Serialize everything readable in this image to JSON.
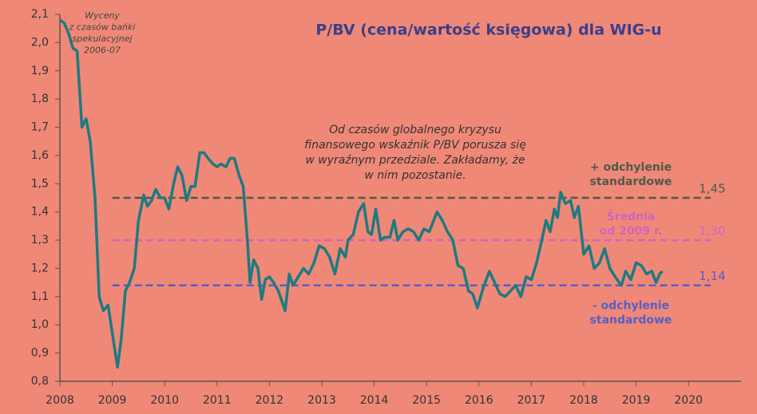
{
  "chart_data": {
    "type": "line",
    "title": "P/BV (cena/wartość księgowa) dla WIG-u",
    "series": [
      {
        "name": "P/BV WIG",
        "color": "#1d7a80",
        "x": [
          2008.0,
          2008.08,
          2008.17,
          2008.25,
          2008.33,
          2008.42,
          2008.5,
          2008.58,
          2008.67,
          2008.75,
          2008.83,
          2008.92,
          2009.0,
          2009.1,
          2009.17,
          2009.25,
          2009.33,
          2009.42,
          2009.5,
          2009.6,
          2009.67,
          2009.75,
          2009.83,
          2009.92,
          2010.0,
          2010.08,
          2010.17,
          2010.25,
          2010.33,
          2010.42,
          2010.5,
          2010.58,
          2010.67,
          2010.75,
          2010.83,
          2010.92,
          2011.0,
          2011.08,
          2011.17,
          2011.25,
          2011.33,
          2011.42,
          2011.5,
          2011.58,
          2011.63,
          2011.7,
          2011.78,
          2011.85,
          2011.92,
          2012.0,
          2012.08,
          2012.17,
          2012.3,
          2012.38,
          2012.45,
          2012.55,
          2012.65,
          2012.75,
          2012.85,
          2012.95,
          2013.05,
          2013.15,
          2013.25,
          2013.35,
          2013.45,
          2013.5,
          2013.6,
          2013.7,
          2013.8,
          2013.88,
          2013.95,
          2014.03,
          2014.12,
          2014.2,
          2014.3,
          2014.38,
          2014.45,
          2014.55,
          2014.65,
          2014.75,
          2014.85,
          2014.95,
          2015.05,
          2015.2,
          2015.3,
          2015.4,
          2015.5,
          2015.6,
          2015.7,
          2015.8,
          2015.88,
          2015.97,
          2016.08,
          2016.2,
          2016.3,
          2016.4,
          2016.5,
          2016.6,
          2016.7,
          2016.8,
          2016.9,
          2017.0,
          2017.1,
          2017.2,
          2017.28,
          2017.36,
          2017.44,
          2017.5,
          2017.56,
          2017.65,
          2017.75,
          2017.82,
          2017.9,
          2018.0,
          2018.1,
          2018.2,
          2018.3,
          2018.4,
          2018.5,
          2018.6,
          2018.72,
          2018.8,
          2018.9,
          2019.0,
          2019.1,
          2019.2,
          2019.3,
          2019.38,
          2019.45,
          2019.5
        ],
        "values": [
          2.08,
          2.07,
          2.03,
          1.98,
          1.97,
          1.7,
          1.73,
          1.65,
          1.45,
          1.1,
          1.05,
          1.07,
          0.97,
          0.85,
          0.95,
          1.12,
          1.15,
          1.2,
          1.37,
          1.46,
          1.42,
          1.44,
          1.48,
          1.45,
          1.45,
          1.41,
          1.5,
          1.56,
          1.53,
          1.44,
          1.49,
          1.49,
          1.61,
          1.61,
          1.59,
          1.57,
          1.56,
          1.57,
          1.56,
          1.59,
          1.59,
          1.53,
          1.49,
          1.3,
          1.15,
          1.23,
          1.2,
          1.09,
          1.16,
          1.17,
          1.15,
          1.12,
          1.05,
          1.18,
          1.14,
          1.17,
          1.2,
          1.18,
          1.22,
          1.28,
          1.27,
          1.24,
          1.18,
          1.27,
          1.24,
          1.3,
          1.32,
          1.4,
          1.43,
          1.33,
          1.32,
          1.41,
          1.3,
          1.31,
          1.31,
          1.37,
          1.3,
          1.33,
          1.34,
          1.33,
          1.3,
          1.34,
          1.33,
          1.4,
          1.37,
          1.33,
          1.3,
          1.21,
          1.2,
          1.12,
          1.11,
          1.06,
          1.13,
          1.19,
          1.15,
          1.11,
          1.1,
          1.12,
          1.14,
          1.1,
          1.17,
          1.16,
          1.22,
          1.3,
          1.37,
          1.33,
          1.41,
          1.38,
          1.47,
          1.43,
          1.44,
          1.38,
          1.42,
          1.25,
          1.28,
          1.2,
          1.22,
          1.27,
          1.2,
          1.17,
          1.14,
          1.19,
          1.16,
          1.22,
          1.21,
          1.18,
          1.19,
          1.15,
          1.18,
          1.19
        ]
      }
    ],
    "xlim": [
      2008,
      2021
    ],
    "xticks": [
      2008,
      2009,
      2010,
      2011,
      2012,
      2013,
      2014,
      2015,
      2016,
      2017,
      2018,
      2019,
      2020
    ],
    "ylim": [
      0.8,
      2.1
    ],
    "yticks": [
      {
        "value": 0.8,
        "label": "0,8"
      },
      {
        "value": 0.9,
        "label": "0,9"
      },
      {
        "value": 1.0,
        "label": "1,0"
      },
      {
        "value": 1.1,
        "label": "1,1"
      },
      {
        "value": 1.2,
        "label": "1,2"
      },
      {
        "value": 1.3,
        "label": "1,3"
      },
      {
        "value": 1.4,
        "label": "1,4"
      },
      {
        "value": 1.5,
        "label": "1,5"
      },
      {
        "value": 1.6,
        "label": "1,6"
      },
      {
        "value": 1.7,
        "label": "1,7"
      },
      {
        "value": 1.8,
        "label": "1,8"
      },
      {
        "value": 1.9,
        "label": "1,9"
      },
      {
        "value": 2.0,
        "label": "2,0"
      },
      {
        "value": 2.1,
        "label": "2,1"
      }
    ],
    "reference_lines": [
      {
        "value": 1.45,
        "label": "1,45",
        "color": "#4f5a4a",
        "annotation": [
          "+ odchylenie",
          "standardowe"
        ]
      },
      {
        "value": 1.3,
        "label": "1,30",
        "color": "#cc66bb",
        "annotation": [
          "Średnia",
          "od 2009 r."
        ]
      },
      {
        "value": 1.14,
        "label": "1,14",
        "color": "#5560c0",
        "annotation": [
          "- odchylenie",
          "standardowe"
        ]
      }
    ],
    "annotations": [
      {
        "lines": [
          "Wyceny",
          "z czasów bańki",
          "spekulacyjnej",
          "2006-07"
        ]
      },
      {
        "lines": [
          "Od czasów globalnego kryzysu",
          "finansowego wskaźnik P/BV porusza się",
          "w wyraźnym przedziale. Zakładamy, że",
          "w nim pozostanie."
        ]
      }
    ]
  }
}
